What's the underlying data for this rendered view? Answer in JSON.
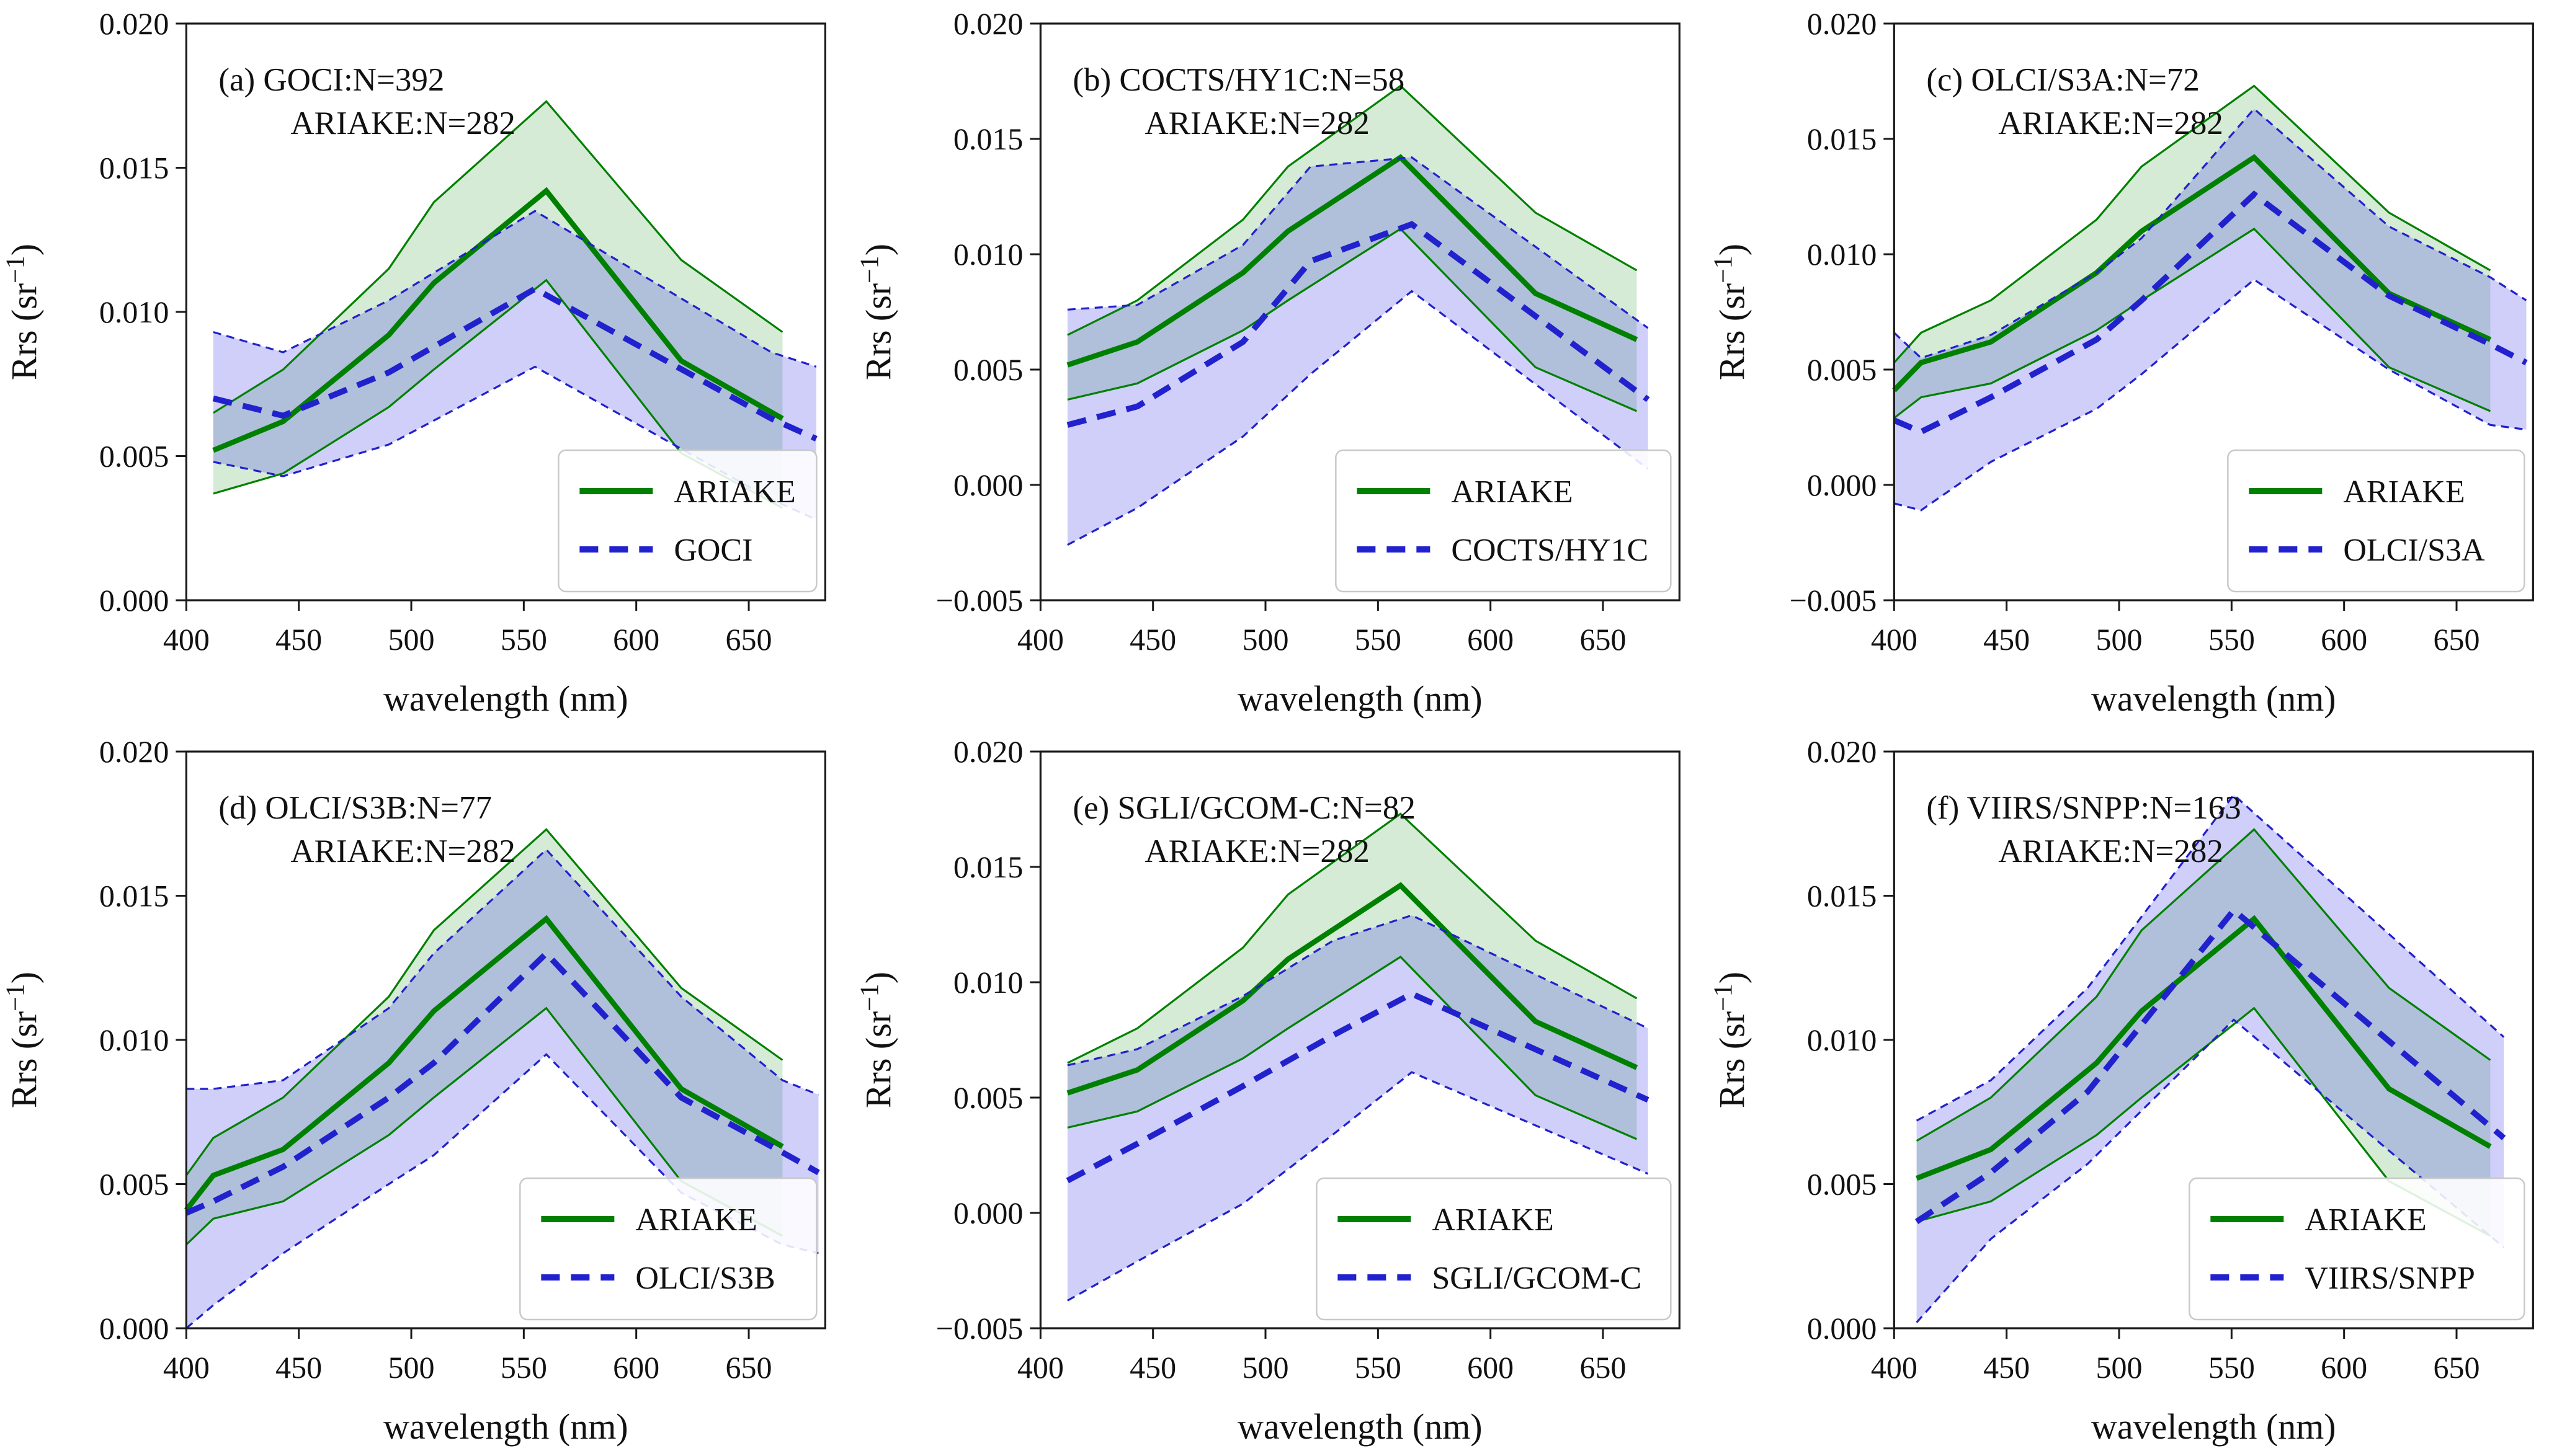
{
  "figure": {
    "xlabel": "wavelength (nm)",
    "ylabel_prefix": "Rrs (sr",
    "ylabel_superscript": "−1",
    "ylabel_suffix": ")"
  },
  "styles": {
    "ariake_line_color": "#008000",
    "satellite_line_color": "#2121cd",
    "ariake_fill": "rgba(0,128,0,0.16)",
    "satellite_fill": "rgba(70,70,230,0.26)",
    "spine_color": "#1a1a1a",
    "text_color": "#111111",
    "legend_bg": "rgba(255,255,255,0.88)",
    "legend_border": "#c9c9c9"
  },
  "chart_data": [
    {
      "type": "line",
      "panel_label": "(a)",
      "title_line1": "GOCI:N=392",
      "title_line2": "ARIAKE:N=282",
      "xlabel": "wavelength (nm)",
      "ylabel": "Rrs (sr-1)",
      "xlim": [
        400,
        684
      ],
      "ylim": [
        0.0,
        0.02
      ],
      "xticks": [
        400,
        450,
        500,
        550,
        600,
        650
      ],
      "xtick_labels": [
        "400",
        "450",
        "500",
        "550",
        "600",
        "650"
      ],
      "yticks": [
        0.0,
        0.005,
        0.01,
        0.015,
        0.02
      ],
      "ytick_labels": [
        "0.000",
        "0.005",
        "0.010",
        "0.015",
        "0.020"
      ],
      "grid": false,
      "legend_position": "lower right",
      "legend": [
        "ARIAKE",
        "GOCI"
      ],
      "series": [
        {
          "name": "ARIAKE",
          "role": "ariake",
          "line": "solid",
          "x": [
            412,
            443,
            490,
            510,
            560,
            620,
            665
          ],
          "mean": [
            0.0052,
            0.0062,
            0.0092,
            0.011,
            0.0142,
            0.0083,
            0.0063
          ],
          "upper": [
            0.0065,
            0.008,
            0.0115,
            0.0138,
            0.0173,
            0.0118,
            0.0093
          ],
          "lower": [
            0.0037,
            0.0044,
            0.0067,
            0.008,
            0.0111,
            0.0051,
            0.0032
          ]
        },
        {
          "name": "GOCI",
          "role": "satellite",
          "line": "dashed",
          "x": [
            412,
            443,
            490,
            555,
            660,
            680
          ],
          "mean": [
            0.007,
            0.0064,
            0.0079,
            0.0108,
            0.0063,
            0.0056
          ],
          "upper": [
            0.0093,
            0.0086,
            0.0104,
            0.0135,
            0.0086,
            0.0081
          ],
          "lower": [
            0.0048,
            0.0043,
            0.0054,
            0.0081,
            0.0035,
            0.0028
          ]
        }
      ]
    },
    {
      "type": "line",
      "panel_label": "(b)",
      "title_line1": "COCTS/HY1C:N=58",
      "title_line2": "ARIAKE:N=282",
      "xlabel": "wavelength (nm)",
      "ylabel": "Rrs (sr-1)",
      "xlim": [
        400,
        684
      ],
      "ylim": [
        -0.005,
        0.02
      ],
      "xticks": [
        400,
        450,
        500,
        550,
        600,
        650
      ],
      "xtick_labels": [
        "400",
        "450",
        "500",
        "550",
        "600",
        "650"
      ],
      "yticks": [
        -0.005,
        0.0,
        0.005,
        0.01,
        0.015,
        0.02
      ],
      "ytick_labels": [
        "−0.005",
        "0.000",
        "0.005",
        "0.010",
        "0.015",
        "0.020"
      ],
      "grid": false,
      "legend_position": "lower right",
      "legend": [
        "ARIAKE",
        "COCTS/HY1C"
      ],
      "series": [
        {
          "name": "ARIAKE",
          "role": "ariake",
          "line": "solid",
          "x": [
            412,
            443,
            490,
            510,
            560,
            620,
            665
          ],
          "mean": [
            0.0052,
            0.0062,
            0.0092,
            0.011,
            0.0142,
            0.0083,
            0.0063
          ],
          "upper": [
            0.0065,
            0.008,
            0.0115,
            0.0138,
            0.0173,
            0.0118,
            0.0093
          ],
          "lower": [
            0.0037,
            0.0044,
            0.0067,
            0.008,
            0.0111,
            0.0051,
            0.0032
          ]
        },
        {
          "name": "COCTS/HY1C",
          "role": "satellite",
          "line": "dashed",
          "x": [
            412,
            443,
            490,
            520,
            565,
            670
          ],
          "mean": [
            0.0026,
            0.0034,
            0.0062,
            0.0097,
            0.0113,
            0.0037
          ],
          "upper": [
            0.0076,
            0.0078,
            0.0104,
            0.0138,
            0.0142,
            0.0068
          ],
          "lower": [
            -0.0026,
            -0.001,
            0.0021,
            0.0048,
            0.0084,
            0.0007
          ]
        }
      ]
    },
    {
      "type": "line",
      "panel_label": "(c)",
      "title_line1": "OLCI/S3A:N=72",
      "title_line2": "ARIAKE:N=282",
      "xlabel": "wavelength (nm)",
      "ylabel": "Rrs (sr-1)",
      "xlim": [
        400,
        684
      ],
      "ylim": [
        -0.005,
        0.02
      ],
      "xticks": [
        400,
        450,
        500,
        550,
        600,
        650
      ],
      "xtick_labels": [
        "400",
        "450",
        "500",
        "550",
        "600",
        "650"
      ],
      "yticks": [
        -0.005,
        0.0,
        0.005,
        0.01,
        0.015,
        0.02
      ],
      "ytick_labels": [
        "−0.005",
        "0.000",
        "0.005",
        "0.010",
        "0.015",
        "0.020"
      ],
      "grid": false,
      "legend_position": "lower right",
      "legend": [
        "ARIAKE",
        "OLCI/S3A"
      ],
      "series": [
        {
          "name": "ARIAKE",
          "role": "ariake",
          "line": "solid",
          "x": [
            400,
            412,
            443,
            490,
            510,
            560,
            620,
            665
          ],
          "mean": [
            0.0041,
            0.0053,
            0.0062,
            0.0092,
            0.011,
            0.0142,
            0.0083,
            0.0063
          ],
          "upper": [
            0.0053,
            0.0066,
            0.008,
            0.0115,
            0.0138,
            0.0173,
            0.0118,
            0.0093
          ],
          "lower": [
            0.0029,
            0.0038,
            0.0044,
            0.0067,
            0.008,
            0.0111,
            0.0051,
            0.0032
          ]
        },
        {
          "name": "OLCI/S3A",
          "role": "satellite",
          "line": "dashed",
          "x": [
            400,
            412,
            443,
            490,
            510,
            560,
            620,
            665,
            681
          ],
          "mean": [
            0.0028,
            0.0023,
            0.0038,
            0.0063,
            0.008,
            0.0126,
            0.0082,
            0.0061,
            0.0053
          ],
          "upper": [
            0.0066,
            0.0055,
            0.0065,
            0.0092,
            0.0107,
            0.0163,
            0.0112,
            0.009,
            0.008
          ],
          "lower": [
            -0.0008,
            -0.0011,
            0.001,
            0.0033,
            0.0048,
            0.0089,
            0.005,
            0.0026,
            0.0024
          ]
        }
      ]
    },
    {
      "type": "line",
      "panel_label": "(d)",
      "title_line1": "OLCI/S3B:N=77",
      "title_line2": "ARIAKE:N=282",
      "xlabel": "wavelength (nm)",
      "ylabel": "Rrs (sr-1)",
      "xlim": [
        400,
        684
      ],
      "ylim": [
        0.0,
        0.02
      ],
      "xticks": [
        400,
        450,
        500,
        550,
        600,
        650
      ],
      "xtick_labels": [
        "400",
        "450",
        "500",
        "550",
        "600",
        "650"
      ],
      "yticks": [
        0.0,
        0.005,
        0.01,
        0.015,
        0.02
      ],
      "ytick_labels": [
        "0.000",
        "0.005",
        "0.010",
        "0.015",
        "0.020"
      ],
      "grid": false,
      "legend_position": "lower right",
      "legend": [
        "ARIAKE",
        "OLCI/S3B"
      ],
      "series": [
        {
          "name": "ARIAKE",
          "role": "ariake",
          "line": "solid",
          "x": [
            400,
            412,
            443,
            490,
            510,
            560,
            620,
            665
          ],
          "mean": [
            0.0041,
            0.0053,
            0.0062,
            0.0092,
            0.011,
            0.0142,
            0.0083,
            0.0063
          ],
          "upper": [
            0.0053,
            0.0066,
            0.008,
            0.0115,
            0.0138,
            0.0173,
            0.0118,
            0.0093
          ],
          "lower": [
            0.0029,
            0.0038,
            0.0044,
            0.0067,
            0.008,
            0.0111,
            0.0051,
            0.0032
          ]
        },
        {
          "name": "OLCI/S3B",
          "role": "satellite",
          "line": "dashed",
          "x": [
            400,
            412,
            443,
            490,
            510,
            560,
            620,
            665,
            681
          ],
          "mean": [
            0.004,
            0.0044,
            0.0056,
            0.008,
            0.0092,
            0.013,
            0.008,
            0.0061,
            0.0054
          ],
          "upper": [
            0.0083,
            0.0083,
            0.0086,
            0.0111,
            0.013,
            0.0166,
            0.0115,
            0.0086,
            0.0081
          ],
          "lower": [
            0.0,
            0.0008,
            0.0026,
            0.005,
            0.006,
            0.0095,
            0.0047,
            0.0029,
            0.0026
          ]
        }
      ]
    },
    {
      "type": "line",
      "panel_label": "(e)",
      "title_line1": "SGLI/GCOM-C:N=82",
      "title_line2": "ARIAKE:N=282",
      "xlabel": "wavelength (nm)",
      "ylabel": "Rrs (sr-1)",
      "xlim": [
        400,
        684
      ],
      "ylim": [
        -0.005,
        0.02
      ],
      "xticks": [
        400,
        450,
        500,
        550,
        600,
        650
      ],
      "xtick_labels": [
        "400",
        "450",
        "500",
        "550",
        "600",
        "650"
      ],
      "yticks": [
        -0.005,
        0.0,
        0.005,
        0.01,
        0.015,
        0.02
      ],
      "ytick_labels": [
        "−0.005",
        "0.000",
        "0.005",
        "0.010",
        "0.015",
        "0.020"
      ],
      "grid": false,
      "legend_position": "lower right",
      "legend": [
        "ARIAKE",
        "SGLI/GCOM-C"
      ],
      "series": [
        {
          "name": "ARIAKE",
          "role": "ariake",
          "line": "solid",
          "x": [
            412,
            443,
            490,
            510,
            560,
            620,
            665
          ],
          "mean": [
            0.0052,
            0.0062,
            0.0092,
            0.011,
            0.0142,
            0.0083,
            0.0063
          ],
          "upper": [
            0.0065,
            0.008,
            0.0115,
            0.0138,
            0.0173,
            0.0118,
            0.0093
          ],
          "lower": [
            0.0037,
            0.0044,
            0.0067,
            0.008,
            0.0111,
            0.0051,
            0.0032
          ]
        },
        {
          "name": "SGLI/GCOM-C",
          "role": "satellite",
          "line": "dashed",
          "x": [
            412,
            443,
            490,
            530,
            565,
            670
          ],
          "mean": [
            0.0014,
            0.003,
            0.0055,
            0.0077,
            0.0095,
            0.0049
          ],
          "upper": [
            0.0064,
            0.0071,
            0.0094,
            0.0118,
            0.0129,
            0.008
          ],
          "lower": [
            -0.0038,
            -0.0021,
            0.0004,
            0.0034,
            0.0061,
            0.0017
          ]
        }
      ]
    },
    {
      "type": "line",
      "panel_label": "(f)",
      "title_line1": "VIIRS/SNPP:N=163",
      "title_line2": "ARIAKE:N=282",
      "xlabel": "wavelength (nm)",
      "ylabel": "Rrs (sr-1)",
      "xlim": [
        400,
        684
      ],
      "ylim": [
        0.0,
        0.02
      ],
      "xticks": [
        400,
        450,
        500,
        550,
        600,
        650
      ],
      "xtick_labels": [
        "400",
        "450",
        "500",
        "550",
        "600",
        "650"
      ],
      "yticks": [
        0.0,
        0.005,
        0.01,
        0.015,
        0.02
      ],
      "ytick_labels": [
        "0.000",
        "0.005",
        "0.010",
        "0.015",
        "0.020"
      ],
      "grid": false,
      "legend_position": "lower right",
      "legend": [
        "ARIAKE",
        "VIIRS/SNPP"
      ],
      "series": [
        {
          "name": "ARIAKE",
          "role": "ariake",
          "line": "solid",
          "x": [
            410,
            443,
            490,
            510,
            560,
            620,
            665
          ],
          "mean": [
            0.0052,
            0.0062,
            0.0092,
            0.011,
            0.0142,
            0.0083,
            0.0063
          ],
          "upper": [
            0.0065,
            0.008,
            0.0115,
            0.0138,
            0.0173,
            0.0118,
            0.0093
          ],
          "lower": [
            0.0037,
            0.0044,
            0.0067,
            0.008,
            0.0111,
            0.0051,
            0.0032
          ]
        },
        {
          "name": "VIIRS/SNPP",
          "role": "satellite",
          "line": "dashed",
          "x": [
            410,
            443,
            486,
            551,
            671
          ],
          "mean": [
            0.0037,
            0.0054,
            0.0082,
            0.0145,
            0.0066
          ],
          "upper": [
            0.0072,
            0.0086,
            0.0118,
            0.0185,
            0.0101
          ],
          "lower": [
            0.0002,
            0.0031,
            0.0057,
            0.0107,
            0.0028
          ]
        }
      ]
    }
  ]
}
